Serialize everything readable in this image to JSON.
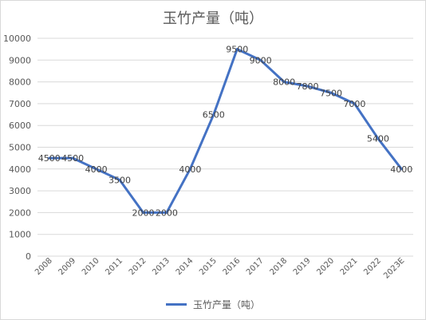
{
  "chart_data": {
    "type": "line",
    "title": "玉竹产量（吨）",
    "categories": [
      "2008",
      "2009",
      "2010",
      "2011",
      "2012",
      "2013",
      "2014",
      "2015",
      "2016",
      "2017",
      "2018",
      "2019",
      "2020",
      "2021",
      "2022",
      "2023E"
    ],
    "series": [
      {
        "name": "玉竹产量（吨）",
        "values": [
          4500,
          4500,
          4000,
          3500,
          2000,
          2000,
          4000,
          6500,
          9500,
          9000,
          8000,
          7800,
          7500,
          7000,
          5400,
          4000
        ],
        "color": "#4472C4"
      }
    ],
    "ylim": [
      0,
      10000
    ],
    "yticks": [
      "0",
      "1000",
      "2000",
      "3000",
      "4000",
      "5000",
      "6000",
      "7000",
      "8000",
      "9000",
      "10000"
    ],
    "grid": true,
    "legend_position": "bottom",
    "data_labels": true
  }
}
